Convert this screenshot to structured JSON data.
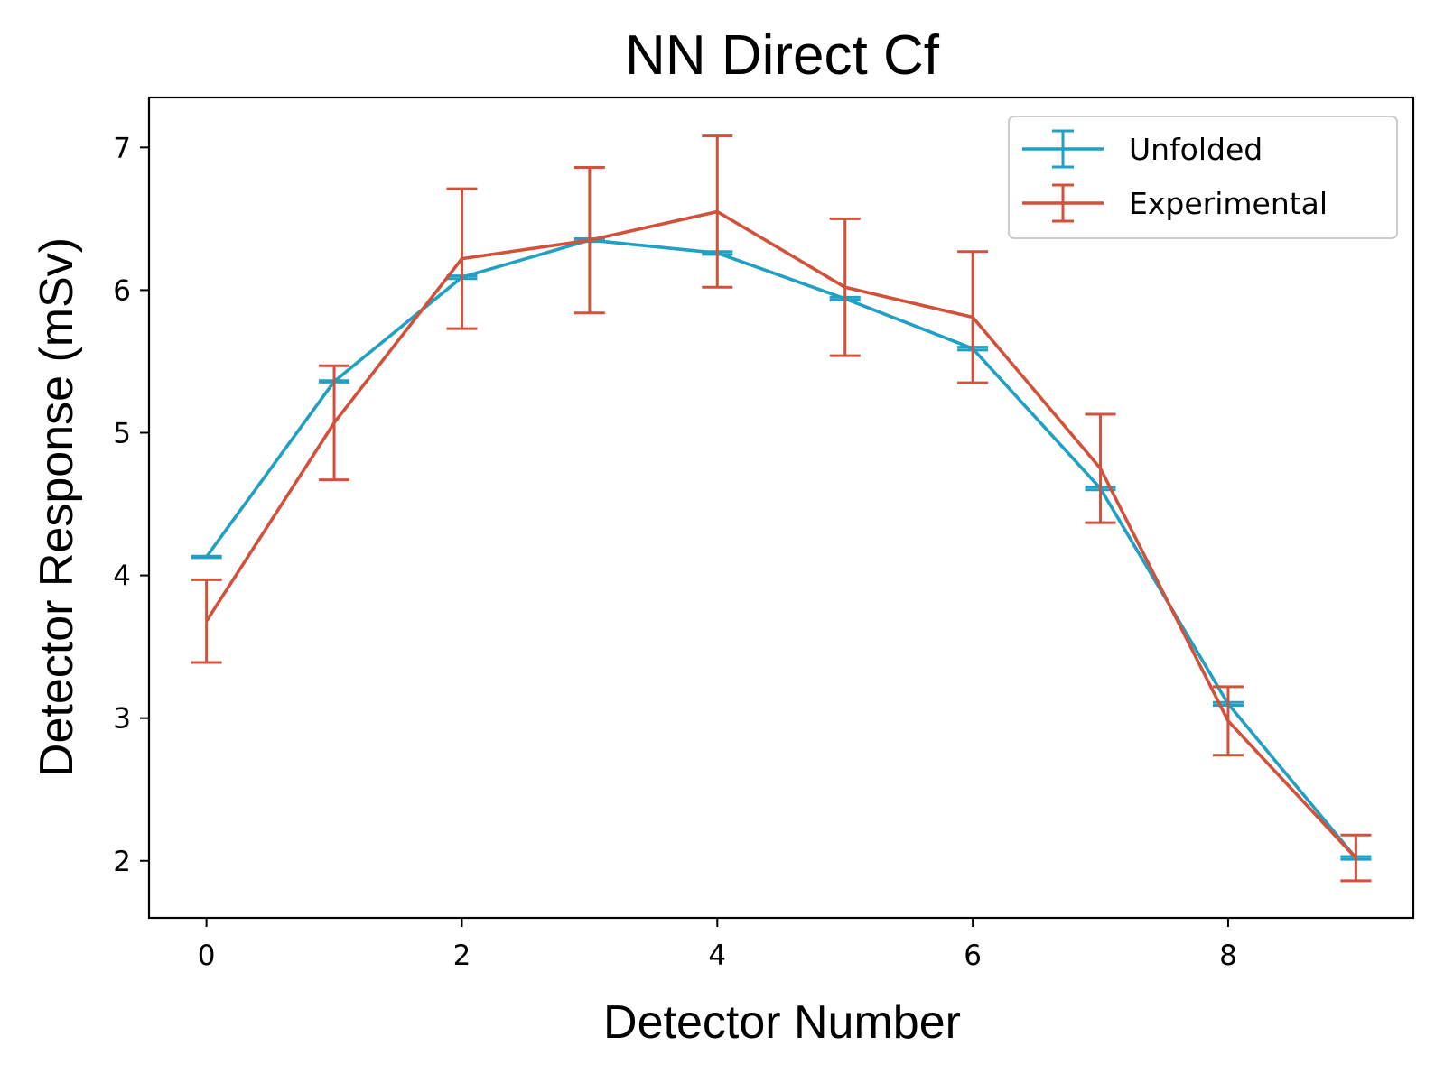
{
  "chart_data": {
    "type": "line",
    "title": "NN Direct Cf",
    "xlabel": "Detector Number",
    "ylabel": "Detector Response (mSv)",
    "xlim": [
      -0.45,
      9.45
    ],
    "ylim": [
      1.6,
      7.35
    ],
    "xticks": [
      0,
      2,
      4,
      6,
      8
    ],
    "yticks": [
      2,
      3,
      4,
      5,
      6,
      7
    ],
    "grid": false,
    "legend_position": "top-right",
    "x": [
      0,
      1,
      2,
      3,
      4,
      5,
      6,
      7,
      8,
      9
    ],
    "series": [
      {
        "name": "Unfolded",
        "color": "#22A0C4",
        "values": [
          4.13,
          5.36,
          6.09,
          6.35,
          6.26,
          5.94,
          5.59,
          4.61,
          3.1,
          2.02
        ],
        "errors": [
          0.005,
          0.005,
          0.01,
          0.01,
          0.01,
          0.01,
          0.01,
          0.01,
          0.01,
          0.01
        ]
      },
      {
        "name": "Experimental",
        "color": "#D2513A",
        "values": [
          3.68,
          5.07,
          6.22,
          6.35,
          6.55,
          6.02,
          5.81,
          4.75,
          2.98,
          2.02
        ],
        "errors": [
          0.29,
          0.4,
          0.49,
          0.51,
          0.53,
          0.48,
          0.46,
          0.38,
          0.24,
          0.16
        ]
      }
    ]
  }
}
